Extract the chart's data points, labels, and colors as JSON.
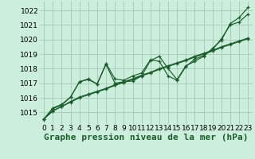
{
  "bg_color": "#cceedd",
  "grid_color": "#aaccbb",
  "line_color": "#1a5c2a",
  "xlabel": "Graphe pression niveau de la mer (hPa)",
  "xlabel_fontsize": 8,
  "tick_fontsize": 6.5,
  "xlim": [
    -0.5,
    23.5
  ],
  "ylim": [
    1014.2,
    1022.6
  ],
  "yticks": [
    1015,
    1016,
    1017,
    1018,
    1019,
    1020,
    1021,
    1022
  ],
  "xticks": [
    0,
    1,
    2,
    3,
    4,
    5,
    6,
    7,
    8,
    9,
    10,
    11,
    12,
    13,
    14,
    15,
    16,
    17,
    18,
    19,
    20,
    21,
    22,
    23
  ],
  "series": [
    [
      1014.55,
      1015.25,
      1015.5,
      1016.05,
      1017.1,
      1017.25,
      1016.95,
      1018.3,
      1017.0,
      1017.1,
      1017.15,
      1017.5,
      1018.55,
      1018.85,
      1018.0,
      1017.25,
      1018.2,
      1018.5,
      1018.85,
      1019.4,
      1019.95,
      1021.1,
      1021.5,
      1022.2
    ],
    [
      1014.55,
      1015.3,
      1015.55,
      1016.05,
      1017.1,
      1017.3,
      1016.95,
      1018.35,
      1017.3,
      1017.2,
      1017.5,
      1017.7,
      1018.6,
      1018.5,
      1017.5,
      1017.2,
      1018.15,
      1018.65,
      1018.9,
      1019.3,
      1020.05,
      1021.0,
      1021.2,
      1021.75
    ],
    [
      1014.55,
      1015.1,
      1015.4,
      1015.7,
      1016.0,
      1016.2,
      1016.4,
      1016.6,
      1016.85,
      1017.05,
      1017.25,
      1017.5,
      1017.7,
      1017.95,
      1018.15,
      1018.35,
      1018.55,
      1018.8,
      1019.0,
      1019.2,
      1019.45,
      1019.65,
      1019.85,
      1020.05
    ],
    [
      1014.55,
      1015.1,
      1015.4,
      1015.75,
      1016.05,
      1016.25,
      1016.45,
      1016.65,
      1016.9,
      1017.1,
      1017.3,
      1017.55,
      1017.75,
      1018.0,
      1018.2,
      1018.4,
      1018.6,
      1018.85,
      1019.05,
      1019.25,
      1019.5,
      1019.7,
      1019.9,
      1020.1
    ]
  ]
}
